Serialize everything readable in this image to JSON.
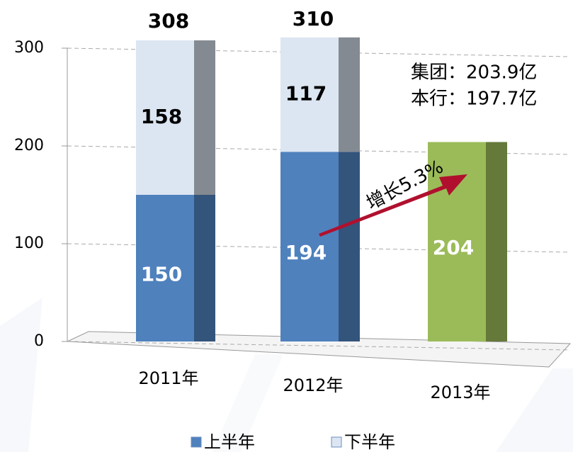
{
  "chart_data": {
    "type": "stacked_bar",
    "categories": [
      "2011年",
      "2012年",
      "2013年"
    ],
    "series": [
      {
        "name": "上半年",
        "color": "#4f81bd",
        "colors": [
          "#4f81bd",
          "#4f81bd",
          "#9bbb59"
        ],
        "values": [
          150,
          194,
          204
        ]
      },
      {
        "name": "下半年",
        "color": "#dce6f2",
        "values": [
          158,
          117,
          null
        ]
      }
    ],
    "totals": [
      308,
      310,
      null
    ],
    "annotations": [
      "集团：203.9亿",
      "本行：197.7亿",
      "增长5.3%"
    ],
    "ylim": [
      0,
      300
    ],
    "yticks": [
      0,
      100,
      200,
      300
    ],
    "grid": true
  }
}
